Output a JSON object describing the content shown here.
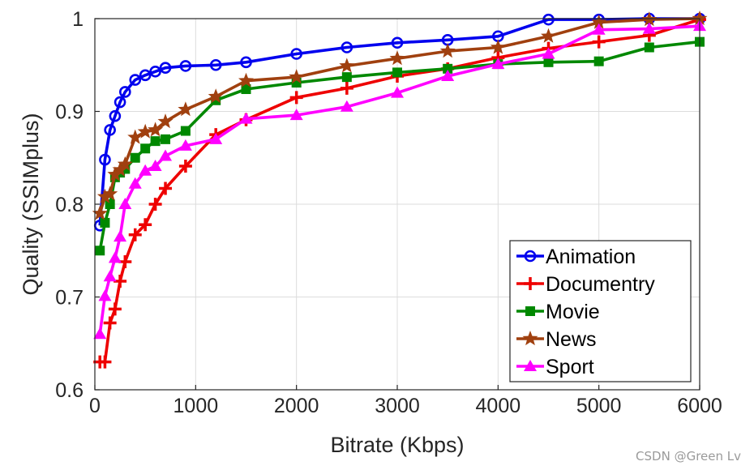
{
  "chart_data": {
    "type": "line",
    "xlabel": "Bitrate (Kbps)",
    "ylabel": "Quality (SSIMplus)",
    "xlim": [
      0,
      6000
    ],
    "ylim": [
      0.6,
      1.0
    ],
    "xticks": [
      "0",
      "1000",
      "2000",
      "3000",
      "4000",
      "5000",
      "6000"
    ],
    "yticks": [
      "0.6",
      "0.7",
      "0.8",
      "0.9",
      "1"
    ],
    "grid": true,
    "legend_position": "bottom-right",
    "series": [
      {
        "name": "Animation",
        "color": "#0000ee",
        "marker": "circle",
        "points": [
          [
            50,
            0.777
          ],
          [
            100,
            0.848
          ],
          [
            150,
            0.88
          ],
          [
            200,
            0.895
          ],
          [
            250,
            0.91
          ],
          [
            300,
            0.921
          ],
          [
            400,
            0.934
          ],
          [
            500,
            0.939
          ],
          [
            600,
            0.943
          ],
          [
            700,
            0.947
          ],
          [
            900,
            0.949
          ],
          [
            1200,
            0.95
          ],
          [
            1500,
            0.953
          ],
          [
            2000,
            0.962
          ],
          [
            2500,
            0.969
          ],
          [
            3000,
            0.974
          ],
          [
            3500,
            0.977
          ],
          [
            4000,
            0.981
          ],
          [
            4500,
            0.999
          ],
          [
            5000,
            0.999
          ],
          [
            5500,
            1.0
          ],
          [
            6000,
            1.0
          ]
        ]
      },
      {
        "name": "Documentry",
        "color": "#ee0000",
        "marker": "plus",
        "points": [
          [
            50,
            0.63
          ],
          [
            100,
            0.63
          ],
          [
            150,
            0.672
          ],
          [
            200,
            0.687
          ],
          [
            250,
            0.717
          ],
          [
            300,
            0.738
          ],
          [
            400,
            0.767
          ],
          [
            500,
            0.778
          ],
          [
            600,
            0.8
          ],
          [
            700,
            0.817
          ],
          [
            900,
            0.841
          ],
          [
            1200,
            0.875
          ],
          [
            1500,
            0.891
          ],
          [
            2000,
            0.915
          ],
          [
            2500,
            0.925
          ],
          [
            3000,
            0.938
          ],
          [
            3500,
            0.946
          ],
          [
            4000,
            0.958
          ],
          [
            4500,
            0.968
          ],
          [
            5000,
            0.975
          ],
          [
            5500,
            0.982
          ],
          [
            6000,
            0.999
          ]
        ]
      },
      {
        "name": "Movie",
        "color": "#008800",
        "marker": "square",
        "points": [
          [
            50,
            0.75
          ],
          [
            100,
            0.78
          ],
          [
            150,
            0.8
          ],
          [
            200,
            0.829
          ],
          [
            250,
            0.834
          ],
          [
            300,
            0.838
          ],
          [
            400,
            0.85
          ],
          [
            500,
            0.86
          ],
          [
            600,
            0.868
          ],
          [
            700,
            0.87
          ],
          [
            900,
            0.879
          ],
          [
            1200,
            0.912
          ],
          [
            1500,
            0.924
          ],
          [
            2000,
            0.931
          ],
          [
            2500,
            0.937
          ],
          [
            3000,
            0.942
          ],
          [
            3500,
            0.946
          ],
          [
            4000,
            0.951
          ],
          [
            4500,
            0.953
          ],
          [
            5000,
            0.954
          ],
          [
            5500,
            0.969
          ],
          [
            6000,
            0.975
          ]
        ]
      },
      {
        "name": "News",
        "color": "#a0400f",
        "marker": "star",
        "points": [
          [
            50,
            0.79
          ],
          [
            100,
            0.808
          ],
          [
            150,
            0.811
          ],
          [
            200,
            0.832
          ],
          [
            250,
            0.837
          ],
          [
            300,
            0.843
          ],
          [
            400,
            0.872
          ],
          [
            500,
            0.878
          ],
          [
            600,
            0.88
          ],
          [
            700,
            0.889
          ],
          [
            900,
            0.902
          ],
          [
            1200,
            0.916
          ],
          [
            1500,
            0.933
          ],
          [
            2000,
            0.937
          ],
          [
            2500,
            0.949
          ],
          [
            3000,
            0.957
          ],
          [
            3500,
            0.965
          ],
          [
            4000,
            0.969
          ],
          [
            4500,
            0.981
          ],
          [
            5000,
            0.996
          ],
          [
            5500,
            0.999
          ],
          [
            6000,
            1.0
          ]
        ]
      },
      {
        "name": "Sport",
        "color": "#ff00ff",
        "marker": "triangle",
        "points": [
          [
            50,
            0.66
          ],
          [
            100,
            0.701
          ],
          [
            150,
            0.722
          ],
          [
            200,
            0.742
          ],
          [
            250,
            0.765
          ],
          [
            300,
            0.8
          ],
          [
            400,
            0.822
          ],
          [
            500,
            0.836
          ],
          [
            600,
            0.841
          ],
          [
            700,
            0.852
          ],
          [
            900,
            0.863
          ],
          [
            1200,
            0.87
          ],
          [
            1500,
            0.892
          ],
          [
            2000,
            0.896
          ],
          [
            2500,
            0.905
          ],
          [
            3000,
            0.92
          ],
          [
            3500,
            0.938
          ],
          [
            4000,
            0.951
          ],
          [
            4500,
            0.962
          ],
          [
            5000,
            0.988
          ],
          [
            5500,
            0.989
          ],
          [
            6000,
            0.992
          ]
        ]
      }
    ]
  },
  "watermark": "CSDN @Green Lv"
}
